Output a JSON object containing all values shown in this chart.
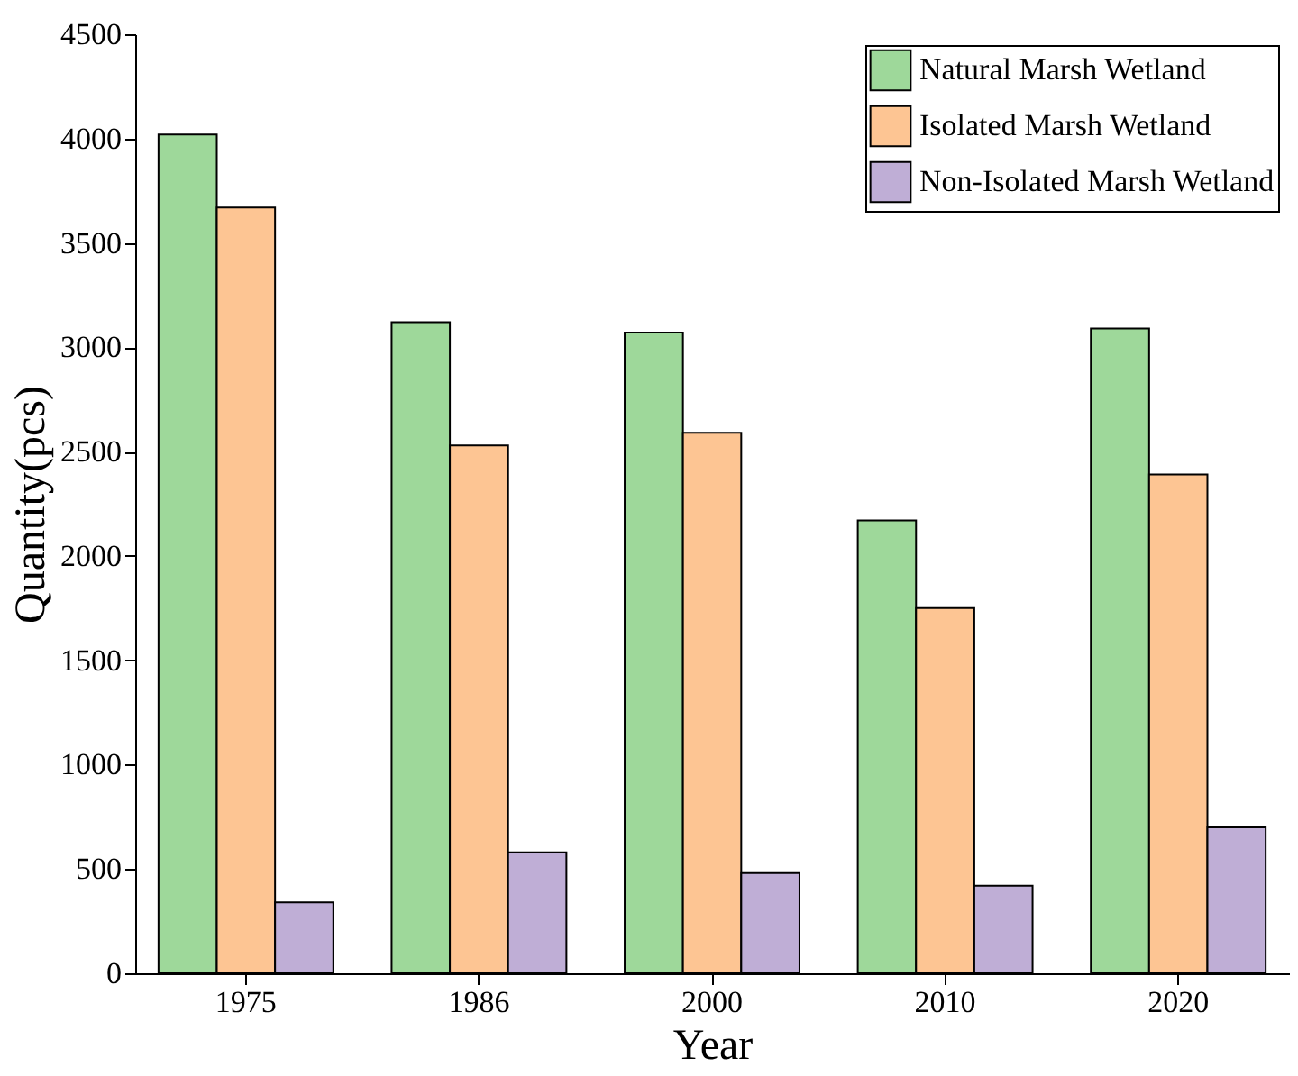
{
  "chart_data": {
    "type": "bar",
    "xlabel": "Year",
    "ylabel": "Quantity(pcs)",
    "categories": [
      "1975",
      "1986",
      "2000",
      "2010",
      "2020"
    ],
    "series": [
      {
        "name": "Natural Marsh Wetland",
        "color": "#9ed89a",
        "values": [
          4020,
          3120,
          3070,
          2170,
          3090
        ]
      },
      {
        "name": "Isolated Marsh Wetland",
        "color": "#fdc593",
        "values": [
          3670,
          2530,
          2590,
          1750,
          2390
        ]
      },
      {
        "name": "Non-Isolated Marsh Wetland",
        "color": "#bfaed6",
        "values": [
          340,
          580,
          480,
          420,
          700
        ]
      }
    ],
    "ylim": [
      0,
      4500
    ],
    "yticks": [
      0,
      500,
      1000,
      1500,
      2000,
      2500,
      3000,
      3500,
      4000,
      4500
    ],
    "grid": false,
    "legend": "top right"
  }
}
